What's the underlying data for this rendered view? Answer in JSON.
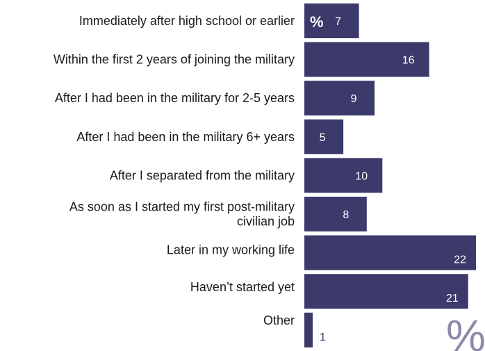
{
  "chart_data": {
    "type": "bar",
    "orientation": "horizontal",
    "categories": [
      [
        "Immediately after high school or earlier"
      ],
      [
        "Within the first 2 years of joining the military"
      ],
      [
        "After I had been in the military for 2-5 years"
      ],
      [
        "After I had been in the military 6+ years"
      ],
      [
        "After I separated from the military"
      ],
      [
        "As soon as I started my first post-military",
        "civilian job"
      ],
      [
        "Later in my working life"
      ],
      [
        "Haven’t started yet"
      ],
      [
        "Other"
      ]
    ],
    "values": [
      7,
      16,
      9,
      5,
      10,
      8,
      22,
      21,
      1
    ],
    "unit_label": "%",
    "watermark_label": "%",
    "bar_color": "#3b3a6b",
    "label_inside_color": "#ffffff",
    "label_outside_color": "#3b3a6b",
    "watermark_color": "#8d8aa8",
    "xlim": [
      0,
      22
    ],
    "grid": false
  }
}
